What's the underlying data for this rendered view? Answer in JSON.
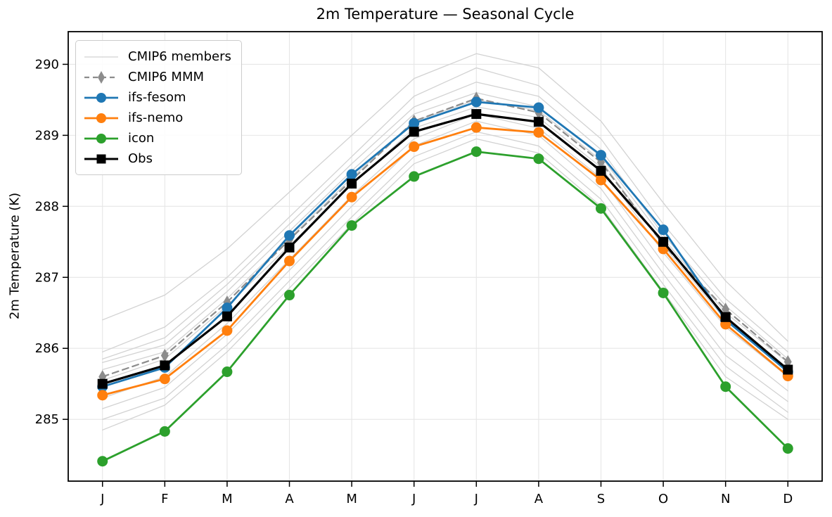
{
  "title": "2m Temperature — Seasonal Cycle",
  "ylabel": "2m Temperature (K)",
  "chart_data": {
    "type": "line",
    "title": "2m Temperature — Seasonal Cycle",
    "xlabel": "",
    "ylabel": "2m Temperature (K)",
    "categories": [
      "J",
      "F",
      "M",
      "A",
      "M",
      "J",
      "J",
      "A",
      "S",
      "O",
      "N",
      "D"
    ],
    "yticks": [
      285,
      286,
      287,
      288,
      289,
      290
    ],
    "ylim": [
      284.13,
      290.46
    ],
    "xlim": [
      -0.55,
      11.55
    ],
    "grid": true,
    "legend_position": "upper left",
    "grid_color": "#e6e6e6",
    "spine_color": "#000000",
    "series": [
      {
        "name": "CMIP6 members",
        "role": "members",
        "color": "#d2d2d2",
        "width": 1.3,
        "marker": "none",
        "dash": "none",
        "values_list": [
          [
            286.4,
            286.75,
            287.4,
            288.2,
            289.0,
            289.8,
            290.15,
            289.95,
            289.2,
            288.05,
            286.95,
            286.1
          ],
          [
            285.95,
            286.3,
            287.0,
            287.85,
            288.7,
            289.55,
            289.95,
            289.7,
            288.95,
            287.75,
            286.7,
            285.95
          ],
          [
            285.85,
            286.15,
            286.9,
            287.75,
            288.6,
            289.4,
            289.75,
            289.55,
            288.8,
            287.6,
            286.6,
            285.85
          ],
          [
            285.8,
            286.05,
            286.8,
            287.65,
            288.5,
            289.3,
            289.6,
            289.4,
            288.7,
            287.55,
            286.5,
            285.8
          ],
          [
            285.7,
            285.95,
            286.7,
            287.55,
            288.4,
            289.2,
            289.5,
            289.35,
            288.65,
            287.45,
            286.4,
            285.7
          ],
          [
            285.55,
            285.85,
            286.6,
            287.45,
            288.3,
            289.1,
            289.4,
            289.25,
            288.55,
            287.35,
            286.3,
            285.6
          ],
          [
            285.3,
            285.6,
            286.35,
            287.25,
            288.15,
            288.95,
            289.3,
            289.1,
            288.4,
            287.2,
            286.1,
            285.4
          ],
          [
            285.15,
            285.45,
            286.2,
            287.1,
            288.0,
            288.85,
            289.2,
            289.0,
            288.25,
            287.05,
            285.9,
            285.25
          ],
          [
            285.0,
            285.3,
            286.05,
            286.95,
            287.85,
            288.7,
            289.05,
            288.85,
            288.1,
            286.9,
            285.75,
            285.1
          ],
          [
            284.85,
            285.2,
            285.95,
            286.85,
            287.75,
            288.6,
            288.95,
            288.75,
            288.0,
            286.8,
            285.6,
            285.0
          ]
        ]
      },
      {
        "name": "CMIP6 MMM",
        "role": "line",
        "color": "#8c8c8c",
        "width": 2.2,
        "marker": "diamond",
        "dash": "9 6",
        "values": [
          285.6,
          285.9,
          286.65,
          287.53,
          288.37,
          289.2,
          289.52,
          289.32,
          288.62,
          287.46,
          286.55,
          285.81
        ]
      },
      {
        "name": "ifs-fesom",
        "role": "line",
        "color": "#1f77b4",
        "width": 2.8,
        "marker": "circle",
        "dash": "none",
        "values": [
          285.46,
          285.73,
          286.57,
          287.59,
          288.45,
          289.17,
          289.47,
          289.39,
          288.72,
          287.67,
          286.4,
          285.67
        ]
      },
      {
        "name": "ifs-nemo",
        "role": "line",
        "color": "#ff7f0e",
        "width": 2.8,
        "marker": "circle",
        "dash": "none",
        "values": [
          285.34,
          285.57,
          286.25,
          287.23,
          288.13,
          288.84,
          289.11,
          289.04,
          288.37,
          287.4,
          286.34,
          285.61
        ]
      },
      {
        "name": "icon",
        "role": "line",
        "color": "#2ca02c",
        "width": 2.8,
        "marker": "circle",
        "dash": "none",
        "values": [
          284.41,
          284.83,
          285.67,
          286.75,
          287.73,
          288.42,
          288.77,
          288.67,
          287.97,
          286.78,
          285.46,
          284.59
        ]
      },
      {
        "name": "Obs",
        "role": "line",
        "color": "#000000",
        "width": 3.2,
        "marker": "square",
        "dash": "none",
        "values": [
          285.5,
          285.76,
          286.45,
          287.42,
          288.32,
          289.05,
          289.3,
          289.19,
          288.5,
          287.5,
          286.44,
          285.7
        ]
      }
    ]
  }
}
